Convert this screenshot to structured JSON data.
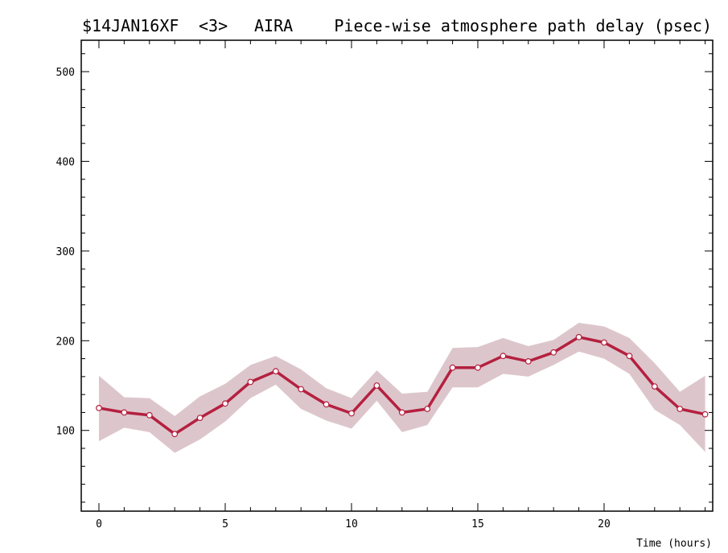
{
  "header": {
    "experiment": "$14JAN16XF",
    "baseline": "<3>",
    "station": "AIRA",
    "title": "Piece-wise atmosphere path delay (psec)"
  },
  "chart_data": {
    "type": "line",
    "xlabel": "Time (hours)",
    "ylabel": "",
    "xlim": [
      -0.7,
      24.3
    ],
    "ylim": [
      10,
      535
    ],
    "xticks": [
      0,
      5,
      10,
      15,
      20
    ],
    "yticks": [
      100,
      200,
      300,
      400,
      500
    ],
    "x": [
      0,
      1,
      2,
      3,
      4,
      5,
      6,
      7,
      8,
      9,
      10,
      11,
      12,
      13,
      14,
      15,
      16,
      17,
      18,
      19,
      20,
      21,
      22,
      23,
      24
    ],
    "series": [
      {
        "values": [
          125,
          120,
          117,
          96,
          114,
          130,
          154,
          166,
          146,
          129,
          119,
          150,
          120,
          124,
          170,
          170,
          183,
          177,
          187,
          204,
          198,
          183,
          149,
          124,
          118
        ],
        "upper": [
          161,
          137,
          136,
          116,
          138,
          152,
          173,
          183,
          168,
          147,
          136,
          167,
          141,
          143,
          192,
          193,
          203,
          194,
          201,
          220,
          216,
          203,
          175,
          143,
          161
        ],
        "lower": [
          88,
          103,
          98,
          75,
          90,
          110,
          136,
          151,
          124,
          111,
          102,
          133,
          98,
          106,
          148,
          148,
          163,
          160,
          173,
          188,
          180,
          163,
          123,
          106,
          76
        ]
      }
    ],
    "colors": {
      "line": "#b5203f",
      "band": "#dcc6cc",
      "marker_fill": "#ffffff",
      "axis": "#000000"
    },
    "grid": false,
    "legend": "none"
  }
}
